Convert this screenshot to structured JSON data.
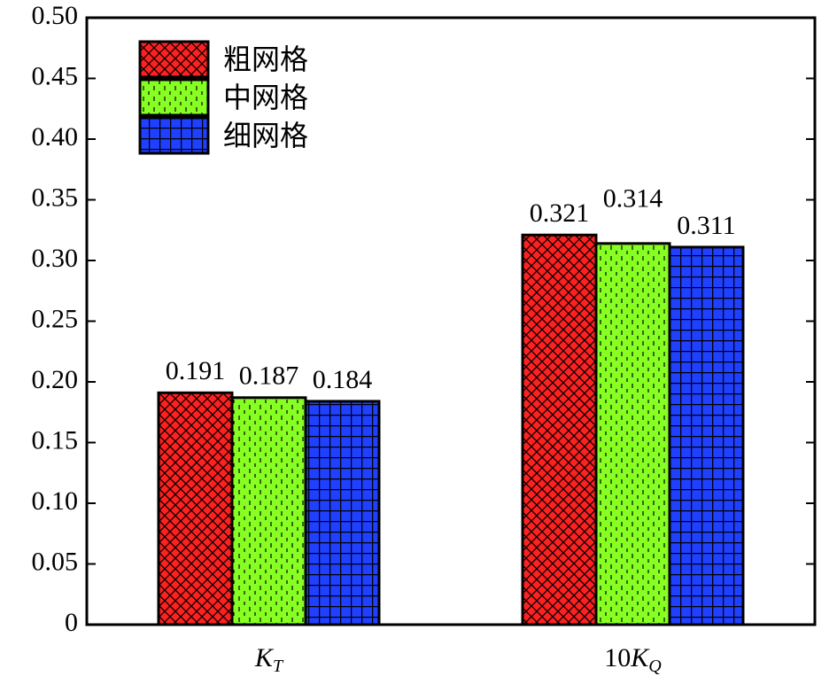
{
  "chart_data": {
    "type": "bar",
    "categories": [
      "KT",
      "10KQ"
    ],
    "series": [
      {
        "name": "粗网格",
        "color": "#ff2020",
        "values": [
          0.191,
          0.321
        ]
      },
      {
        "name": "中网格",
        "color": "#88ff22",
        "values": [
          0.187,
          0.314
        ]
      },
      {
        "name": "细网格",
        "color": "#2040ff",
        "values": [
          0.184,
          0.311
        ]
      }
    ],
    "ylim": [
      0,
      0.5
    ],
    "yticks": [
      0,
      0.05,
      {
        "value": 0.1,
        "label": "0.10"
      },
      0.15,
      {
        "value": 0.2,
        "label": "0.20"
      },
      0.25,
      {
        "value": 0.3,
        "label": "0.30"
      },
      0.35,
      {
        "value": 0.4,
        "label": "0.40"
      },
      0.45,
      {
        "value": 0.5,
        "label": "0.50"
      }
    ],
    "legend": "upper left"
  }
}
